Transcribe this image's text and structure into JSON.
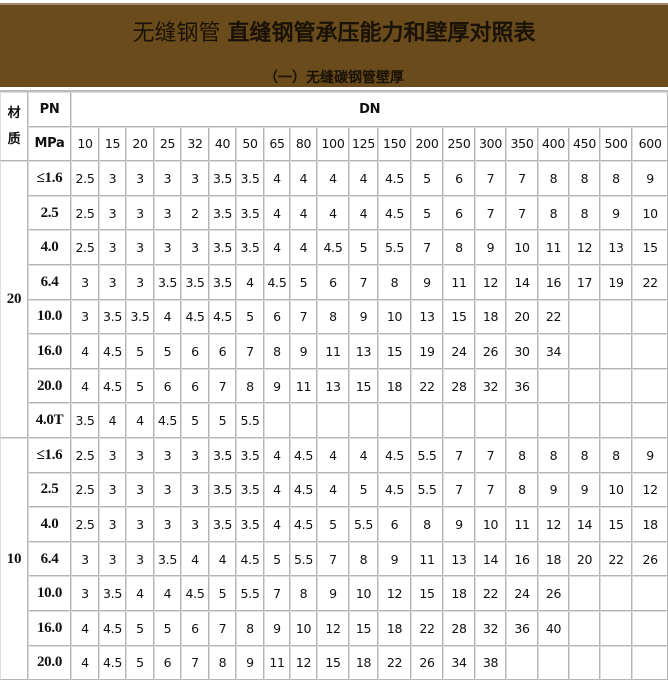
{
  "header": {
    "title_part1": "无缝钢管",
    "title_part2": "直缝钢管承压能力和壁厚对照表",
    "subtitle": "（一）无缝碳钢管壁厚",
    "background_color": "#6a4b1c"
  },
  "table": {
    "col_material": "材质",
    "col_pn": "PN",
    "col_pn_unit": "MPa",
    "col_dn": "DN",
    "dn_sizes": [
      "10",
      "15",
      "20",
      "25",
      "32",
      "40",
      "50",
      "65",
      "80",
      "100",
      "125",
      "150",
      "200",
      "250",
      "300",
      "350",
      "400",
      "450",
      "500",
      "600"
    ],
    "groups": [
      {
        "material": "20",
        "rows": [
          {
            "pn": "≤1.6",
            "values": [
              "2.5",
              "3",
              "3",
              "3",
              "3",
              "3.5",
              "3.5",
              "4",
              "4",
              "4",
              "4",
              "4.5",
              "5",
              "6",
              "7",
              "7",
              "8",
              "8",
              "8",
              "9"
            ]
          },
          {
            "pn": "2.5",
            "values": [
              "2.5",
              "3",
              "3",
              "3",
              "2",
              "3.5",
              "3.5",
              "4",
              "4",
              "4",
              "4",
              "4.5",
              "5",
              "6",
              "7",
              "7",
              "8",
              "8",
              "9",
              "10"
            ]
          },
          {
            "pn": "4.0",
            "values": [
              "2.5",
              "3",
              "3",
              "3",
              "3",
              "3.5",
              "3.5",
              "4",
              "4",
              "4.5",
              "5",
              "5.5",
              "7",
              "8",
              "9",
              "10",
              "11",
              "12",
              "13",
              "15"
            ]
          },
          {
            "pn": "6.4",
            "values": [
              "3",
              "3",
              "3",
              "3.5",
              "3.5",
              "3.5",
              "4",
              "4.5",
              "5",
              "6",
              "7",
              "8",
              "9",
              "11",
              "12",
              "14",
              "16",
              "17",
              "19",
              "22"
            ]
          },
          {
            "pn": "10.0",
            "values": [
              "3",
              "3.5",
              "3.5",
              "4",
              "4.5",
              "4.5",
              "5",
              "6",
              "7",
              "8",
              "9",
              "10",
              "13",
              "15",
              "18",
              "20",
              "22",
              "",
              "",
              ""
            ]
          },
          {
            "pn": "16.0",
            "values": [
              "4",
              "4.5",
              "5",
              "5",
              "6",
              "6",
              "7",
              "8",
              "9",
              "11",
              "13",
              "15",
              "19",
              "24",
              "26",
              "30",
              "34",
              "",
              "",
              ""
            ]
          },
          {
            "pn": "20.0",
            "values": [
              "4",
              "4.5",
              "5",
              "6",
              "6",
              "7",
              "8",
              "9",
              "11",
              "13",
              "15",
              "18",
              "22",
              "28",
              "32",
              "36",
              "",
              "",
              "",
              ""
            ]
          },
          {
            "pn": "4.0T",
            "values": [
              "3.5",
              "4",
              "4",
              "4.5",
              "5",
              "5",
              "5.5",
              "",
              "",
              "",
              "",
              "",
              "",
              "",
              "",
              "",
              "",
              "",
              "",
              ""
            ]
          }
        ]
      },
      {
        "material": "10",
        "rows": [
          {
            "pn": "≤1.6",
            "values": [
              "2.5",
              "3",
              "3",
              "3",
              "3",
              "3.5",
              "3.5",
              "4",
              "4.5",
              "4",
              "4",
              "4.5",
              "5.5",
              "7",
              "7",
              "8",
              "8",
              "8",
              "8",
              "9"
            ]
          },
          {
            "pn": "2.5",
            "values": [
              "2.5",
              "3",
              "3",
              "3",
              "3",
              "3.5",
              "3.5",
              "4",
              "4.5",
              "4",
              "5",
              "4.5",
              "5.5",
              "7",
              "7",
              "8",
              "9",
              "9",
              "10",
              "12"
            ]
          },
          {
            "pn": "4.0",
            "values": [
              "2.5",
              "3",
              "3",
              "3",
              "3",
              "3.5",
              "3.5",
              "4",
              "4.5",
              "5",
              "5.5",
              "6",
              "8",
              "9",
              "10",
              "11",
              "12",
              "14",
              "15",
              "18"
            ]
          },
          {
            "pn": "6.4",
            "values": [
              "3",
              "3",
              "3",
              "3.5",
              "4",
              "4",
              "4.5",
              "5",
              "5.5",
              "7",
              "8",
              "9",
              "11",
              "13",
              "14",
              "16",
              "18",
              "20",
              "22",
              "26"
            ]
          },
          {
            "pn": "10.0",
            "values": [
              "3",
              "3.5",
              "4",
              "4",
              "4.5",
              "5",
              "5.5",
              "7",
              "8",
              "9",
              "10",
              "12",
              "15",
              "18",
              "22",
              "24",
              "26",
              "",
              "",
              ""
            ]
          },
          {
            "pn": "16.0",
            "values": [
              "4",
              "4.5",
              "5",
              "5",
              "6",
              "7",
              "8",
              "9",
              "10",
              "12",
              "15",
              "18",
              "22",
              "28",
              "32",
              "36",
              "40",
              "",
              "",
              ""
            ]
          },
          {
            "pn": "20.0",
            "values": [
              "4",
              "4.5",
              "5",
              "6",
              "7",
              "8",
              "9",
              "11",
              "12",
              "15",
              "18",
              "22",
              "26",
              "34",
              "38",
              "",
              "",
              "",
              "",
              ""
            ]
          }
        ]
      }
    ]
  }
}
